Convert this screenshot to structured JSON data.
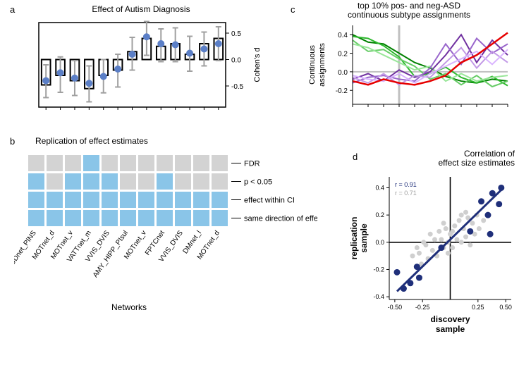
{
  "panel_a": {
    "label": "a",
    "title": "Effect of Autism Diagnosis",
    "ylabel": "Cohen's d",
    "ylim": [
      -0.9,
      0.7
    ],
    "yticks": [
      -0.5,
      0.0,
      0.5
    ],
    "bar_outline": "#000000",
    "bar_fill": "#ffffff",
    "point_color": "#5b7fc7",
    "ci_color": "#a0a0a0",
    "background": "#ffffff",
    "bars": [
      {
        "d": -0.48,
        "pt": -0.4,
        "lo": -0.72,
        "hi": -0.1
      },
      {
        "d": -0.3,
        "pt": -0.25,
        "lo": -0.62,
        "hi": 0.05
      },
      {
        "d": -0.4,
        "pt": -0.35,
        "lo": -0.68,
        "hi": -0.02
      },
      {
        "d": -0.55,
        "pt": -0.45,
        "lo": -0.8,
        "hi": -0.12
      },
      {
        "d": -0.3,
        "pt": -0.32,
        "lo": -0.63,
        "hi": 0.0
      },
      {
        "d": -0.2,
        "pt": -0.18,
        "lo": -0.52,
        "hi": 0.1
      },
      {
        "d": 0.15,
        "pt": 0.1,
        "lo": -0.2,
        "hi": 0.42
      },
      {
        "d": 0.4,
        "pt": 0.43,
        "lo": 0.08,
        "hi": 0.72
      },
      {
        "d": 0.25,
        "pt": 0.3,
        "lo": -0.04,
        "hi": 0.58
      },
      {
        "d": 0.3,
        "pt": 0.28,
        "lo": -0.04,
        "hi": 0.6
      },
      {
        "d": 0.1,
        "pt": 0.12,
        "lo": -0.22,
        "hi": 0.44
      },
      {
        "d": 0.3,
        "pt": 0.2,
        "lo": -0.12,
        "hi": 0.52
      },
      {
        "d": 0.4,
        "pt": 0.3,
        "lo": -0.02,
        "hi": 0.62
      }
    ]
  },
  "panel_b": {
    "label": "b",
    "title": "Replication of effect estimates",
    "xlabel": "Networks",
    "row_labels": [
      "FDR",
      "p < 0.05",
      "effect within CI",
      "same direction of effect"
    ],
    "networks": [
      "AUDnet_PINS",
      "MOTnet_d",
      "MOTnet_v",
      "VATTnet_m",
      "VVIS_DVIS",
      "AMY_HIPP_PIsul",
      "MOTnet_v",
      "FPTCnet",
      "VVIS_DVIS",
      "DMnet_l",
      "MOTnet_d"
    ],
    "on_color": "#8ac5e8",
    "off_color": "#d3d3d3",
    "cells": [
      [
        0,
        0,
        0,
        1,
        0,
        0,
        0,
        0,
        0,
        0,
        0
      ],
      [
        1,
        0,
        1,
        1,
        1,
        0,
        0,
        1,
        0,
        0,
        0
      ],
      [
        1,
        1,
        1,
        1,
        1,
        1,
        1,
        1,
        1,
        1,
        1
      ],
      [
        1,
        1,
        1,
        1,
        1,
        1,
        1,
        1,
        1,
        1,
        1
      ]
    ]
  },
  "panel_c": {
    "label": "c",
    "title_line1": "top 10% pos- and neg-ASD",
    "title_line2": "continuous subtype assignments",
    "ylabel": "Continuous assignments",
    "ylim": [
      -0.35,
      0.5
    ],
    "yticks": [
      -0.2,
      0.0,
      0.2,
      0.4
    ],
    "npoints": 11,
    "axis_color": "#000000",
    "vline_color": "#c0c0c0",
    "hline_color": "#c0c0c0",
    "series_colors": {
      "green1": "#008000",
      "green2": "#2eb82e",
      "green3": "#66cc66",
      "green4": "#99e699",
      "purple1": "#7030a0",
      "purple2": "#9966cc",
      "purple3": "#c299e6",
      "purple4": "#d9b3ff",
      "red": "#e60000"
    },
    "series": {
      "green1": [
        0.4,
        0.32,
        0.3,
        0.2,
        0.1,
        0.04,
        -0.05,
        -0.1,
        -0.12,
        -0.08,
        -0.1
      ],
      "green2": [
        0.38,
        0.36,
        0.28,
        0.16,
        -0.05,
        -0.02,
        0.05,
        -0.06,
        -0.12,
        -0.05,
        -0.15
      ],
      "green3": [
        0.34,
        0.22,
        0.24,
        0.14,
        0.06,
        -0.08,
        -0.02,
        -0.14,
        -0.04,
        -0.16,
        -0.1
      ],
      "green4": [
        0.3,
        0.26,
        0.18,
        0.1,
        0.02,
        0.06,
        -0.1,
        -0.02,
        -0.1,
        -0.06,
        -0.04
      ],
      "purple1": [
        -0.08,
        -0.02,
        -0.1,
        0.02,
        -0.06,
        0.0,
        0.18,
        0.4,
        0.1,
        0.34,
        0.18
      ],
      "purple2": [
        -0.12,
        -0.06,
        -0.04,
        -0.08,
        -0.1,
        0.04,
        0.3,
        0.08,
        0.36,
        0.2,
        0.3
      ],
      "purple3": [
        -0.06,
        -0.12,
        -0.02,
        -0.14,
        -0.04,
        -0.06,
        0.1,
        0.26,
        0.04,
        0.22,
        0.1
      ],
      "purple4": [
        -0.04,
        -0.08,
        -0.1,
        -0.02,
        -0.12,
        -0.02,
        0.06,
        0.14,
        0.22,
        0.08,
        0.24
      ],
      "red": [
        -0.1,
        -0.14,
        -0.08,
        -0.12,
        -0.14,
        -0.1,
        -0.04,
        0.1,
        0.18,
        0.3,
        0.42
      ]
    }
  },
  "panel_d": {
    "label": "d",
    "title_line1": "Correlation of",
    "title_line2": "effect size estimates",
    "xlabel": "discovery sample",
    "ylabel": "replication sample",
    "xlim": [
      -0.55,
      0.55
    ],
    "ylim": [
      -0.42,
      0.48
    ],
    "xticks": [
      -0.5,
      -0.25,
      0.25,
      0.5
    ],
    "yticks": [
      -0.4,
      -0.2,
      0.0,
      0.2,
      0.4
    ],
    "stats": {
      "r1_label": "r = 0.91",
      "r1_color": "#1f2f7a",
      "r2_label": "r = 0.71",
      "r2_color": "#a0a0a0"
    },
    "line_color": "#1f2f7a",
    "line": {
      "x1": -0.48,
      "y1": -0.36,
      "x2": 0.48,
      "y2": 0.4
    },
    "dark_point_color": "#1f2f7a",
    "grey_point_color": "#cfcfcf",
    "dark_points": [
      {
        "x": -0.48,
        "y": -0.22
      },
      {
        "x": -0.42,
        "y": -0.34
      },
      {
        "x": -0.36,
        "y": -0.3
      },
      {
        "x": -0.3,
        "y": -0.18
      },
      {
        "x": -0.28,
        "y": -0.26
      },
      {
        "x": -0.08,
        "y": -0.04
      },
      {
        "x": 0.18,
        "y": 0.08
      },
      {
        "x": 0.28,
        "y": 0.3
      },
      {
        "x": 0.34,
        "y": 0.2
      },
      {
        "x": 0.38,
        "y": 0.36
      },
      {
        "x": 0.36,
        "y": 0.06
      },
      {
        "x": 0.44,
        "y": 0.28
      },
      {
        "x": 0.46,
        "y": 0.4
      }
    ],
    "grey_points": [
      {
        "x": -0.34,
        "y": -0.1
      },
      {
        "x": -0.3,
        "y": -0.04
      },
      {
        "x": -0.26,
        "y": -0.16
      },
      {
        "x": -0.24,
        "y": 0.0
      },
      {
        "x": -0.2,
        "y": -0.12
      },
      {
        "x": -0.18,
        "y": 0.06
      },
      {
        "x": -0.16,
        "y": -0.06
      },
      {
        "x": -0.14,
        "y": 0.02
      },
      {
        "x": -0.12,
        "y": -0.1
      },
      {
        "x": -0.1,
        "y": 0.08
      },
      {
        "x": -0.08,
        "y": 0.02
      },
      {
        "x": -0.06,
        "y": -0.04
      },
      {
        "x": -0.04,
        "y": 0.1
      },
      {
        "x": -0.02,
        "y": 0.0
      },
      {
        "x": 0.0,
        "y": 0.06
      },
      {
        "x": 0.02,
        "y": -0.04
      },
      {
        "x": 0.04,
        "y": 0.12
      },
      {
        "x": 0.06,
        "y": 0.02
      },
      {
        "x": 0.08,
        "y": 0.16
      },
      {
        "x": 0.1,
        "y": 0.0
      },
      {
        "x": 0.12,
        "y": 0.1
      },
      {
        "x": 0.14,
        "y": 0.04
      },
      {
        "x": 0.16,
        "y": 0.18
      },
      {
        "x": 0.18,
        "y": -0.02
      },
      {
        "x": 0.2,
        "y": 0.14
      },
      {
        "x": 0.22,
        "y": 0.06
      },
      {
        "x": 0.24,
        "y": 0.2
      },
      {
        "x": 0.26,
        "y": 0.1
      },
      {
        "x": -0.22,
        "y": -0.02
      },
      {
        "x": -0.28,
        "y": -0.08
      },
      {
        "x": -0.06,
        "y": 0.14
      },
      {
        "x": 0.02,
        "y": 0.08
      },
      {
        "x": 0.3,
        "y": 0.16
      },
      {
        "x": 0.1,
        "y": 0.2
      },
      {
        "x": -0.02,
        "y": -0.08
      },
      {
        "x": 0.14,
        "y": 0.22
      }
    ]
  }
}
